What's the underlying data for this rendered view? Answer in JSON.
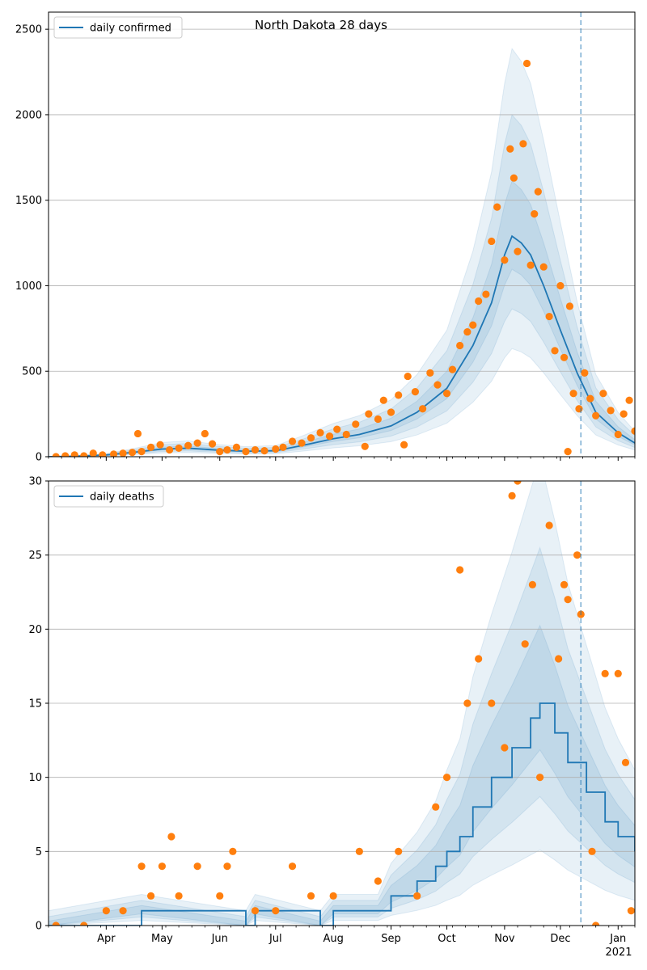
{
  "chart_data": [
    {
      "type": "line",
      "title": "North Dakota 28 days",
      "legend": {
        "label": "daily confirmed",
        "placement": "top-left"
      },
      "series": [
        {
          "name": "daily confirmed",
          "kind": "line",
          "points": [
            [
              "2020-03-01",
              0
            ],
            [
              "2020-03-15",
              3
            ],
            [
              "2020-04-01",
              10
            ],
            [
              "2020-04-15",
              25
            ],
            [
              "2020-05-01",
              45
            ],
            [
              "2020-05-15",
              50
            ],
            [
              "2020-06-01",
              38
            ],
            [
              "2020-06-15",
              32
            ],
            [
              "2020-07-01",
              35
            ],
            [
              "2020-07-15",
              65
            ],
            [
              "2020-08-01",
              105
            ],
            [
              "2020-08-15",
              130
            ],
            [
              "2020-09-01",
              180
            ],
            [
              "2020-09-15",
              260
            ],
            [
              "2020-10-01",
              400
            ],
            [
              "2020-10-15",
              650
            ],
            [
              "2020-10-25",
              900
            ],
            [
              "2020-11-01",
              1180
            ],
            [
              "2020-11-05",
              1290
            ],
            [
              "2020-11-10",
              1250
            ],
            [
              "2020-11-15",
              1180
            ],
            [
              "2020-11-22",
              1000
            ],
            [
              "2020-12-01",
              740
            ],
            [
              "2020-12-10",
              490
            ],
            [
              "2020-12-20",
              260
            ],
            [
              "2021-01-01",
              140
            ],
            [
              "2021-01-10",
              80
            ]
          ]
        },
        {
          "kind": "points",
          "points": [
            [
              "2020-03-05",
              0
            ],
            [
              "2020-03-10",
              5
            ],
            [
              "2020-03-15",
              10
            ],
            [
              "2020-03-20",
              5
            ],
            [
              "2020-03-25",
              20
            ],
            [
              "2020-03-30",
              10
            ],
            [
              "2020-04-05",
              15
            ],
            [
              "2020-04-10",
              20
            ],
            [
              "2020-04-15",
              25
            ],
            [
              "2020-04-18",
              135
            ],
            [
              "2020-04-20",
              30
            ],
            [
              "2020-04-25",
              55
            ],
            [
              "2020-04-30",
              70
            ],
            [
              "2020-05-05",
              40
            ],
            [
              "2020-05-10",
              50
            ],
            [
              "2020-05-15",
              65
            ],
            [
              "2020-05-20",
              80
            ],
            [
              "2020-05-24",
              135
            ],
            [
              "2020-05-28",
              75
            ],
            [
              "2020-06-01",
              30
            ],
            [
              "2020-06-05",
              40
            ],
            [
              "2020-06-10",
              55
            ],
            [
              "2020-06-15",
              30
            ],
            [
              "2020-06-20",
              40
            ],
            [
              "2020-06-25",
              35
            ],
            [
              "2020-07-01",
              45
            ],
            [
              "2020-07-05",
              55
            ],
            [
              "2020-07-10",
              90
            ],
            [
              "2020-07-15",
              80
            ],
            [
              "2020-07-20",
              110
            ],
            [
              "2020-07-25",
              140
            ],
            [
              "2020-07-30",
              120
            ],
            [
              "2020-08-03",
              160
            ],
            [
              "2020-08-08",
              130
            ],
            [
              "2020-08-13",
              190
            ],
            [
              "2020-08-18",
              60
            ],
            [
              "2020-08-20",
              250
            ],
            [
              "2020-08-25",
              220
            ],
            [
              "2020-08-28",
              330
            ],
            [
              "2020-09-01",
              260
            ],
            [
              "2020-09-05",
              360
            ],
            [
              "2020-09-08",
              70
            ],
            [
              "2020-09-10",
              470
            ],
            [
              "2020-09-14",
              380
            ],
            [
              "2020-09-18",
              280
            ],
            [
              "2020-09-22",
              490
            ],
            [
              "2020-09-26",
              420
            ],
            [
              "2020-10-01",
              370
            ],
            [
              "2020-10-04",
              510
            ],
            [
              "2020-10-08",
              650
            ],
            [
              "2020-10-12",
              730
            ],
            [
              "2020-10-15",
              770
            ],
            [
              "2020-10-18",
              910
            ],
            [
              "2020-10-22",
              950
            ],
            [
              "2020-10-25",
              1260
            ],
            [
              "2020-10-28",
              1460
            ],
            [
              "2020-11-01",
              1150
            ],
            [
              "2020-11-04",
              1800
            ],
            [
              "2020-11-06",
              1630
            ],
            [
              "2020-11-08",
              1200
            ],
            [
              "2020-11-11",
              1830
            ],
            [
              "2020-11-13",
              2300
            ],
            [
              "2020-11-15",
              1120
            ],
            [
              "2020-11-17",
              1420
            ],
            [
              "2020-11-19",
              1550
            ],
            [
              "2020-11-22",
              1110
            ],
            [
              "2020-11-25",
              820
            ],
            [
              "2020-11-28",
              620
            ],
            [
              "2020-12-01",
              1000
            ],
            [
              "2020-12-03",
              580
            ],
            [
              "2020-12-06",
              880
            ],
            [
              "2020-12-08",
              370
            ],
            [
              "2020-12-11",
              280
            ],
            [
              "2020-12-14",
              490
            ],
            [
              "2020-12-17",
              340
            ],
            [
              "2020-12-20",
              240
            ],
            [
              "2020-12-24",
              370
            ],
            [
              "2020-12-28",
              270
            ],
            [
              "2021-01-01",
              130
            ],
            [
              "2021-01-04",
              250
            ],
            [
              "2021-01-07",
              330
            ],
            [
              "2021-01-10",
              150
            ],
            [
              "2020-12-05",
              30
            ]
          ]
        }
      ],
      "bands": [
        "outer 95%",
        "90%",
        "inner 50%"
      ],
      "xlim": [
        "2020-03-01",
        "2021-01-10"
      ],
      "ylim": [
        0,
        2600
      ],
      "yticks": [
        0,
        500,
        1000,
        1500,
        2000,
        2500
      ],
      "vline_date": "2020-12-12",
      "grid": "horizontal"
    },
    {
      "type": "line",
      "legend": {
        "label": "daily deaths",
        "placement": "top-left"
      },
      "series": [
        {
          "name": "daily deaths",
          "kind": "step",
          "points": [
            [
              "2020-03-01",
              0
            ],
            [
              "2020-04-20",
              1
            ],
            [
              "2020-06-15",
              0
            ],
            [
              "2020-06-20",
              1
            ],
            [
              "2020-07-25",
              0
            ],
            [
              "2020-08-01",
              1
            ],
            [
              "2020-08-25",
              1
            ],
            [
              "2020-09-01",
              2
            ],
            [
              "2020-09-15",
              3
            ],
            [
              "2020-09-25",
              4
            ],
            [
              "2020-10-01",
              5
            ],
            [
              "2020-10-08",
              6
            ],
            [
              "2020-10-15",
              8
            ],
            [
              "2020-10-25",
              10
            ],
            [
              "2020-11-05",
              12
            ],
            [
              "2020-11-15",
              14
            ],
            [
              "2020-11-20",
              15
            ],
            [
              "2020-11-28",
              13
            ],
            [
              "2020-12-05",
              11
            ],
            [
              "2020-12-15",
              9
            ],
            [
              "2020-12-25",
              7
            ],
            [
              "2021-01-01",
              6
            ],
            [
              "2021-01-10",
              5
            ]
          ]
        },
        {
          "kind": "points",
          "points": [
            [
              "2020-03-05",
              0
            ],
            [
              "2020-03-20",
              0
            ],
            [
              "2020-04-01",
              1
            ],
            [
              "2020-04-10",
              1
            ],
            [
              "2020-04-20",
              4
            ],
            [
              "2020-04-25",
              2
            ],
            [
              "2020-05-01",
              4
            ],
            [
              "2020-05-06",
              6
            ],
            [
              "2020-05-10",
              2
            ],
            [
              "2020-05-20",
              4
            ],
            [
              "2020-06-01",
              2
            ],
            [
              "2020-06-05",
              4
            ],
            [
              "2020-06-08",
              5
            ],
            [
              "2020-06-20",
              1
            ],
            [
              "2020-07-01",
              1
            ],
            [
              "2020-07-10",
              4
            ],
            [
              "2020-07-20",
              2
            ],
            [
              "2020-08-01",
              2
            ],
            [
              "2020-08-15",
              5
            ],
            [
              "2020-08-25",
              3
            ],
            [
              "2020-09-05",
              5
            ],
            [
              "2020-09-15",
              2
            ],
            [
              "2020-09-25",
              8
            ],
            [
              "2020-10-01",
              10
            ],
            [
              "2020-10-08",
              24
            ],
            [
              "2020-10-12",
              15
            ],
            [
              "2020-10-18",
              18
            ],
            [
              "2020-10-25",
              15
            ],
            [
              "2020-11-01",
              12
            ],
            [
              "2020-11-05",
              29
            ],
            [
              "2020-11-08",
              30
            ],
            [
              "2020-11-12",
              19
            ],
            [
              "2020-11-16",
              23
            ],
            [
              "2020-11-20",
              10
            ],
            [
              "2020-11-25",
              27
            ],
            [
              "2020-11-30",
              18
            ],
            [
              "2020-12-03",
              23
            ],
            [
              "2020-12-05",
              22
            ],
            [
              "2020-12-10",
              25
            ],
            [
              "2020-12-12",
              21
            ],
            [
              "2020-12-18",
              5
            ],
            [
              "2020-12-25",
              17
            ],
            [
              "2021-01-01",
              17
            ],
            [
              "2021-01-05",
              11
            ],
            [
              "2020-12-20",
              0
            ],
            [
              "2021-01-08",
              1
            ]
          ]
        }
      ],
      "bands": [
        "outer 95%",
        "90%",
        "inner 50%"
      ],
      "xlim": [
        "2020-03-01",
        "2021-01-10"
      ],
      "ylim": [
        0,
        30
      ],
      "yticks": [
        0,
        5,
        10,
        15,
        20,
        25,
        30
      ],
      "vline_date": "2020-12-12",
      "grid": "horizontal"
    }
  ],
  "x_tick_labels": [
    [
      "2020-04-01",
      "Apr"
    ],
    [
      "2020-05-01",
      "May"
    ],
    [
      "2020-06-01",
      "Jun"
    ],
    [
      "2020-07-01",
      "Jul"
    ],
    [
      "2020-08-01",
      "Aug"
    ],
    [
      "2020-09-01",
      "Sep"
    ],
    [
      "2020-10-01",
      "Oct"
    ],
    [
      "2020-11-01",
      "Nov"
    ],
    [
      "2020-12-01",
      "Dec"
    ],
    [
      "2021-01-01",
      "Jan"
    ]
  ],
  "x_year_label": "2021",
  "colors": {
    "line": "#1f77b4",
    "points": "#ff7f0e",
    "band": "#1f77b4",
    "grid": "#b0b0b0",
    "axis": "#000000"
  }
}
